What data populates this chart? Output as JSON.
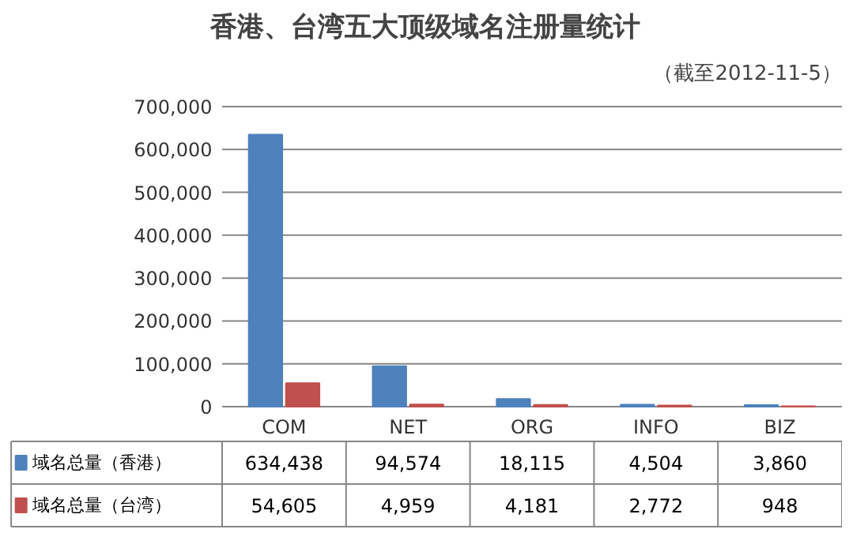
{
  "chart_data": {
    "type": "bar",
    "title": "香港、台湾五大顶级域名注册量统计",
    "subtitle": "（截至2012-11-5）",
    "categories": [
      "COM",
      "NET",
      "ORG",
      "INFO",
      "BIZ"
    ],
    "series": [
      {
        "name": "域名总量（香港）",
        "color": "#4f81bd",
        "values": [
          634438,
          94574,
          18115,
          4504,
          3860
        ],
        "value_labels": [
          "634,438",
          "94,574",
          "18,115",
          "4,504",
          "3,860"
        ]
      },
      {
        "name": "域名总量（台湾）",
        "color": "#c0504d",
        "values": [
          54605,
          4959,
          4181,
          2772,
          948
        ],
        "value_labels": [
          "54,605",
          "4,959",
          "4,181",
          "2,772",
          "948"
        ]
      }
    ],
    "ylim": [
      0,
      700000
    ],
    "yticks": [
      {
        "value": 0,
        "label": "0"
      },
      {
        "value": 100000,
        "label": "100,000"
      },
      {
        "value": 200000,
        "label": "200,000"
      },
      {
        "value": 300000,
        "label": "300,000"
      },
      {
        "value": 400000,
        "label": "400,000"
      },
      {
        "value": 500000,
        "label": "500,000"
      },
      {
        "value": 600000,
        "label": "600,000"
      },
      {
        "value": 700000,
        "label": "700,000"
      }
    ],
    "grid": "y",
    "legend": "bottom"
  }
}
